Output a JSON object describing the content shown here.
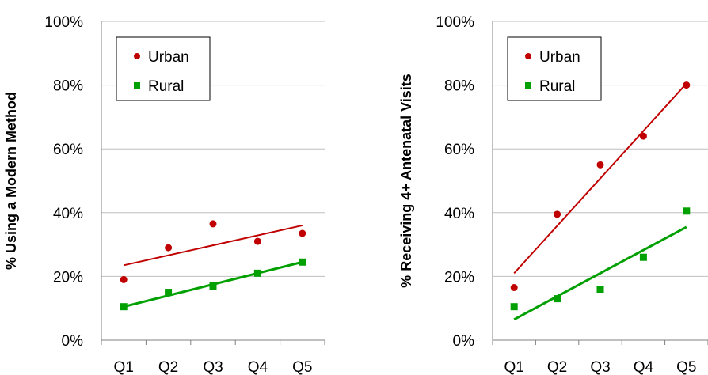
{
  "colors": {
    "urban": "#c00000",
    "rural": "#00a000",
    "grid": "#bfbfbf",
    "axis": "#808080"
  },
  "chart_data": [
    {
      "type": "scatter",
      "categories": [
        "Q1",
        "Q2",
        "Q3",
        "Q4",
        "Q5"
      ],
      "ylabel": "% Using a Modern Method",
      "ylim": [
        0,
        100
      ],
      "yticks": [
        "0%",
        "20%",
        "40%",
        "60%",
        "80%",
        "100%"
      ],
      "grid": true,
      "legend_position": "top-left",
      "series": [
        {
          "name": "Urban",
          "marker": "circle",
          "values": [
            19,
            29,
            36.5,
            31,
            33.5
          ],
          "trend": [
            23.5,
            36
          ]
        },
        {
          "name": "Rural",
          "marker": "square",
          "values": [
            10.5,
            15,
            17,
            21,
            24.5
          ],
          "trend": [
            10.5,
            24.5
          ]
        }
      ]
    },
    {
      "type": "scatter",
      "categories": [
        "Q1",
        "Q2",
        "Q3",
        "Q4",
        "Q5"
      ],
      "ylabel": "% Receiving 4+ Antenatal Visits",
      "ylim": [
        0,
        100
      ],
      "yticks": [
        "0%",
        "20%",
        "40%",
        "60%",
        "80%",
        "100%"
      ],
      "grid": true,
      "legend_position": "top-left",
      "series": [
        {
          "name": "Urban",
          "marker": "circle",
          "values": [
            16.5,
            39.5,
            55,
            64,
            80
          ],
          "trend": [
            21,
            80.5
          ]
        },
        {
          "name": "Rural",
          "marker": "square",
          "values": [
            10.5,
            13,
            16,
            26,
            40.5
          ],
          "trend": [
            6.5,
            35.5
          ]
        }
      ]
    }
  ]
}
